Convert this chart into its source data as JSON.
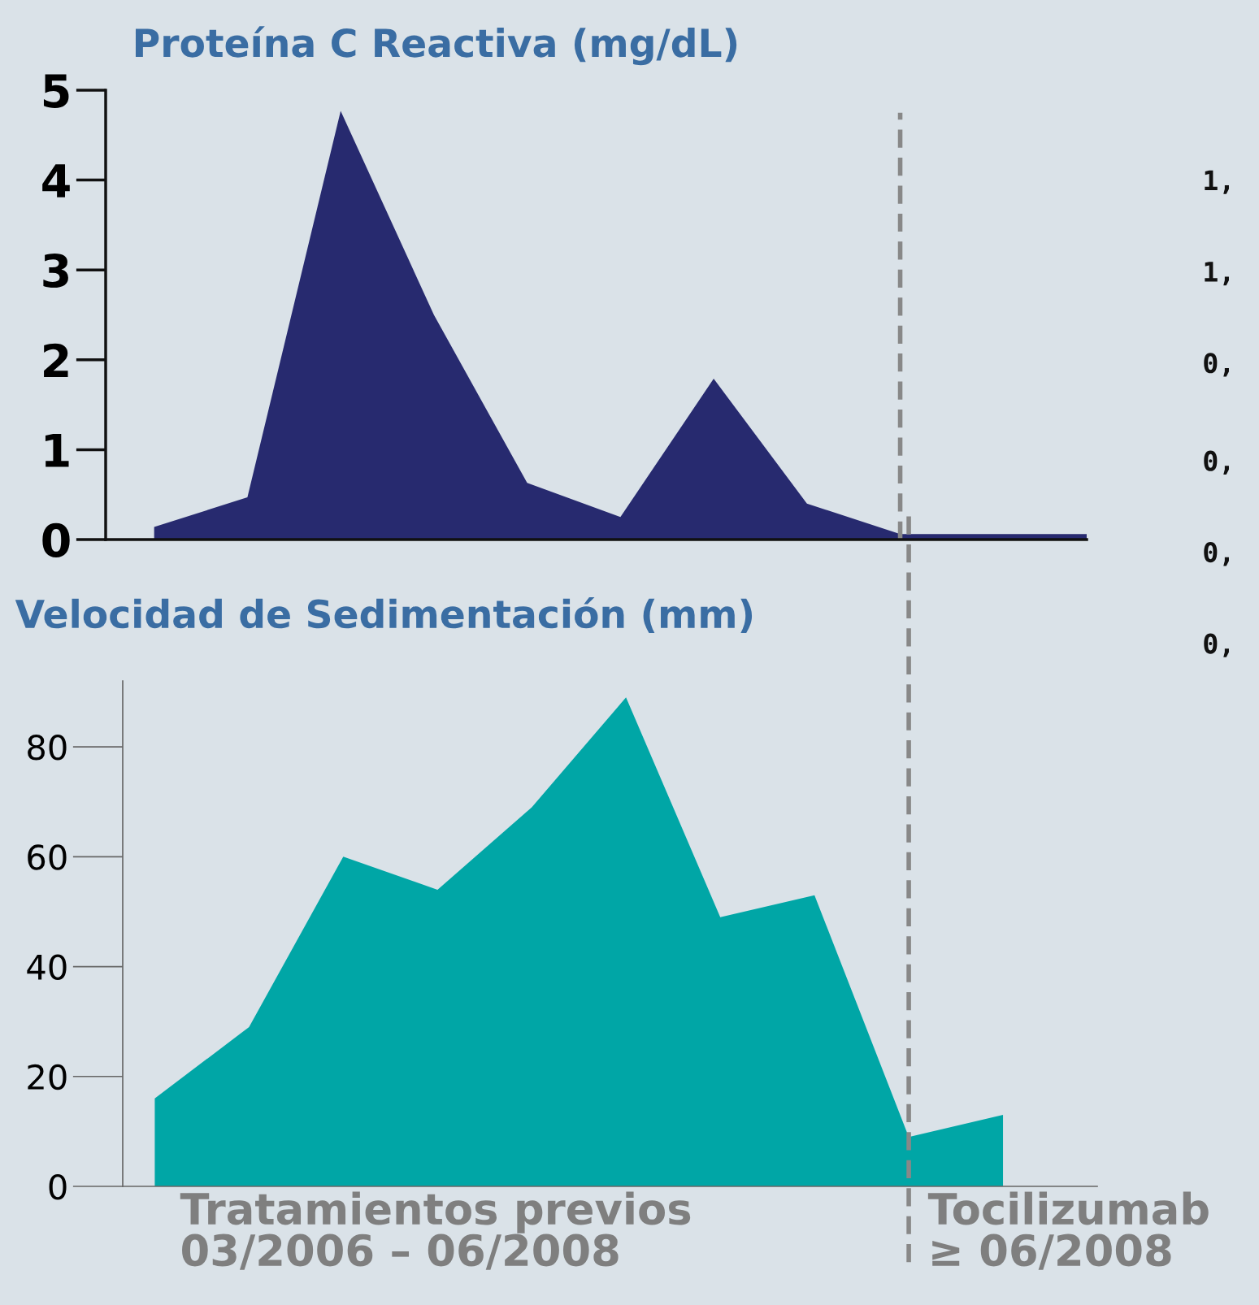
{
  "chart_data": [
    {
      "type": "area",
      "title": "Proteína C Reactiva (mg/dL)",
      "categories": [
        null,
        null,
        null,
        null,
        null,
        null,
        null,
        null,
        null,
        null,
        null
      ],
      "values": [
        0.14,
        0.47,
        4.77,
        2.5,
        0.63,
        0.25,
        1.79,
        0.4,
        0.06,
        0.06,
        0.06
      ],
      "color": "#272a6f",
      "ylim": [
        0,
        5
      ],
      "yticks": [
        0,
        1,
        2,
        3,
        4,
        5
      ],
      "grid": false,
      "tick_labels": "y"
    },
    {
      "type": "area",
      "title": "Velocidad de Sedimentación (mm)",
      "categories": [
        null,
        null,
        null,
        null,
        null,
        null,
        null,
        null,
        null,
        null,
        null
      ],
      "values": [
        16,
        29,
        60,
        54,
        69,
        89,
        49,
        53,
        9,
        13,
        null
      ],
      "color": "#00a6a6",
      "ylim": [
        0,
        92
      ],
      "yticks": [
        0,
        20,
        40,
        60,
        80
      ],
      "grid": false,
      "tick_labels": "y",
      "annotations": [
        "Tratamientos previos\n03/2006 – 06/2008",
        "Tocilizumab\n≥ 06/2008"
      ]
    },
    {
      "type": "other",
      "annotations": [
        "1,",
        "1,",
        "0,",
        "0,",
        "0,",
        "0,"
      ]
    }
  ]
}
